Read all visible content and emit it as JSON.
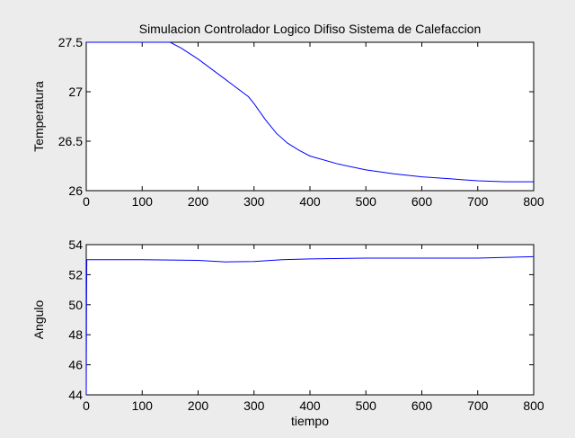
{
  "figure": {
    "background": "#ececec",
    "axes_background": "#ffffff",
    "line_color": "#0000ff"
  },
  "chart_data": [
    {
      "type": "line",
      "title": "Simulacion Controlador Logico Difiso Sistema de Calefaccion",
      "xlabel": "",
      "ylabel": "Temperatura",
      "xlim": [
        0,
        800
      ],
      "ylim": [
        26,
        27.5
      ],
      "xticks": [
        "0",
        "100",
        "200",
        "300",
        "400",
        "500",
        "600",
        "700",
        "800"
      ],
      "yticks": [
        "26",
        "26.5",
        "27",
        "27.5"
      ],
      "grid": false,
      "series": [
        {
          "x": [
            0,
            100,
            150,
            170,
            200,
            250,
            290,
            300,
            320,
            340,
            360,
            380,
            400,
            450,
            500,
            550,
            600,
            650,
            700,
            750,
            800
          ],
          "values": [
            27.5,
            27.5,
            27.5,
            27.44,
            27.33,
            27.12,
            26.95,
            26.88,
            26.72,
            26.58,
            26.48,
            26.41,
            26.35,
            26.27,
            26.21,
            26.17,
            26.14,
            26.12,
            26.1,
            26.09,
            26.09
          ]
        }
      ]
    },
    {
      "type": "line",
      "title": "",
      "xlabel": "tiempo",
      "ylabel": "Angulo",
      "xlim": [
        0,
        800
      ],
      "ylim": [
        44,
        54
      ],
      "xticks": [
        "0",
        "100",
        "200",
        "300",
        "400",
        "500",
        "600",
        "700",
        "800"
      ],
      "yticks": [
        "44",
        "46",
        "48",
        "50",
        "52",
        "54"
      ],
      "grid": false,
      "series": [
        {
          "x": [
            0,
            0.5,
            1,
            100,
            200,
            250,
            300,
            350,
            400,
            500,
            600,
            700,
            800
          ],
          "values": [
            44,
            50,
            53,
            53,
            52.95,
            52.85,
            52.88,
            53,
            53.05,
            53.1,
            53.1,
            53.1,
            53.2
          ]
        }
      ]
    }
  ]
}
